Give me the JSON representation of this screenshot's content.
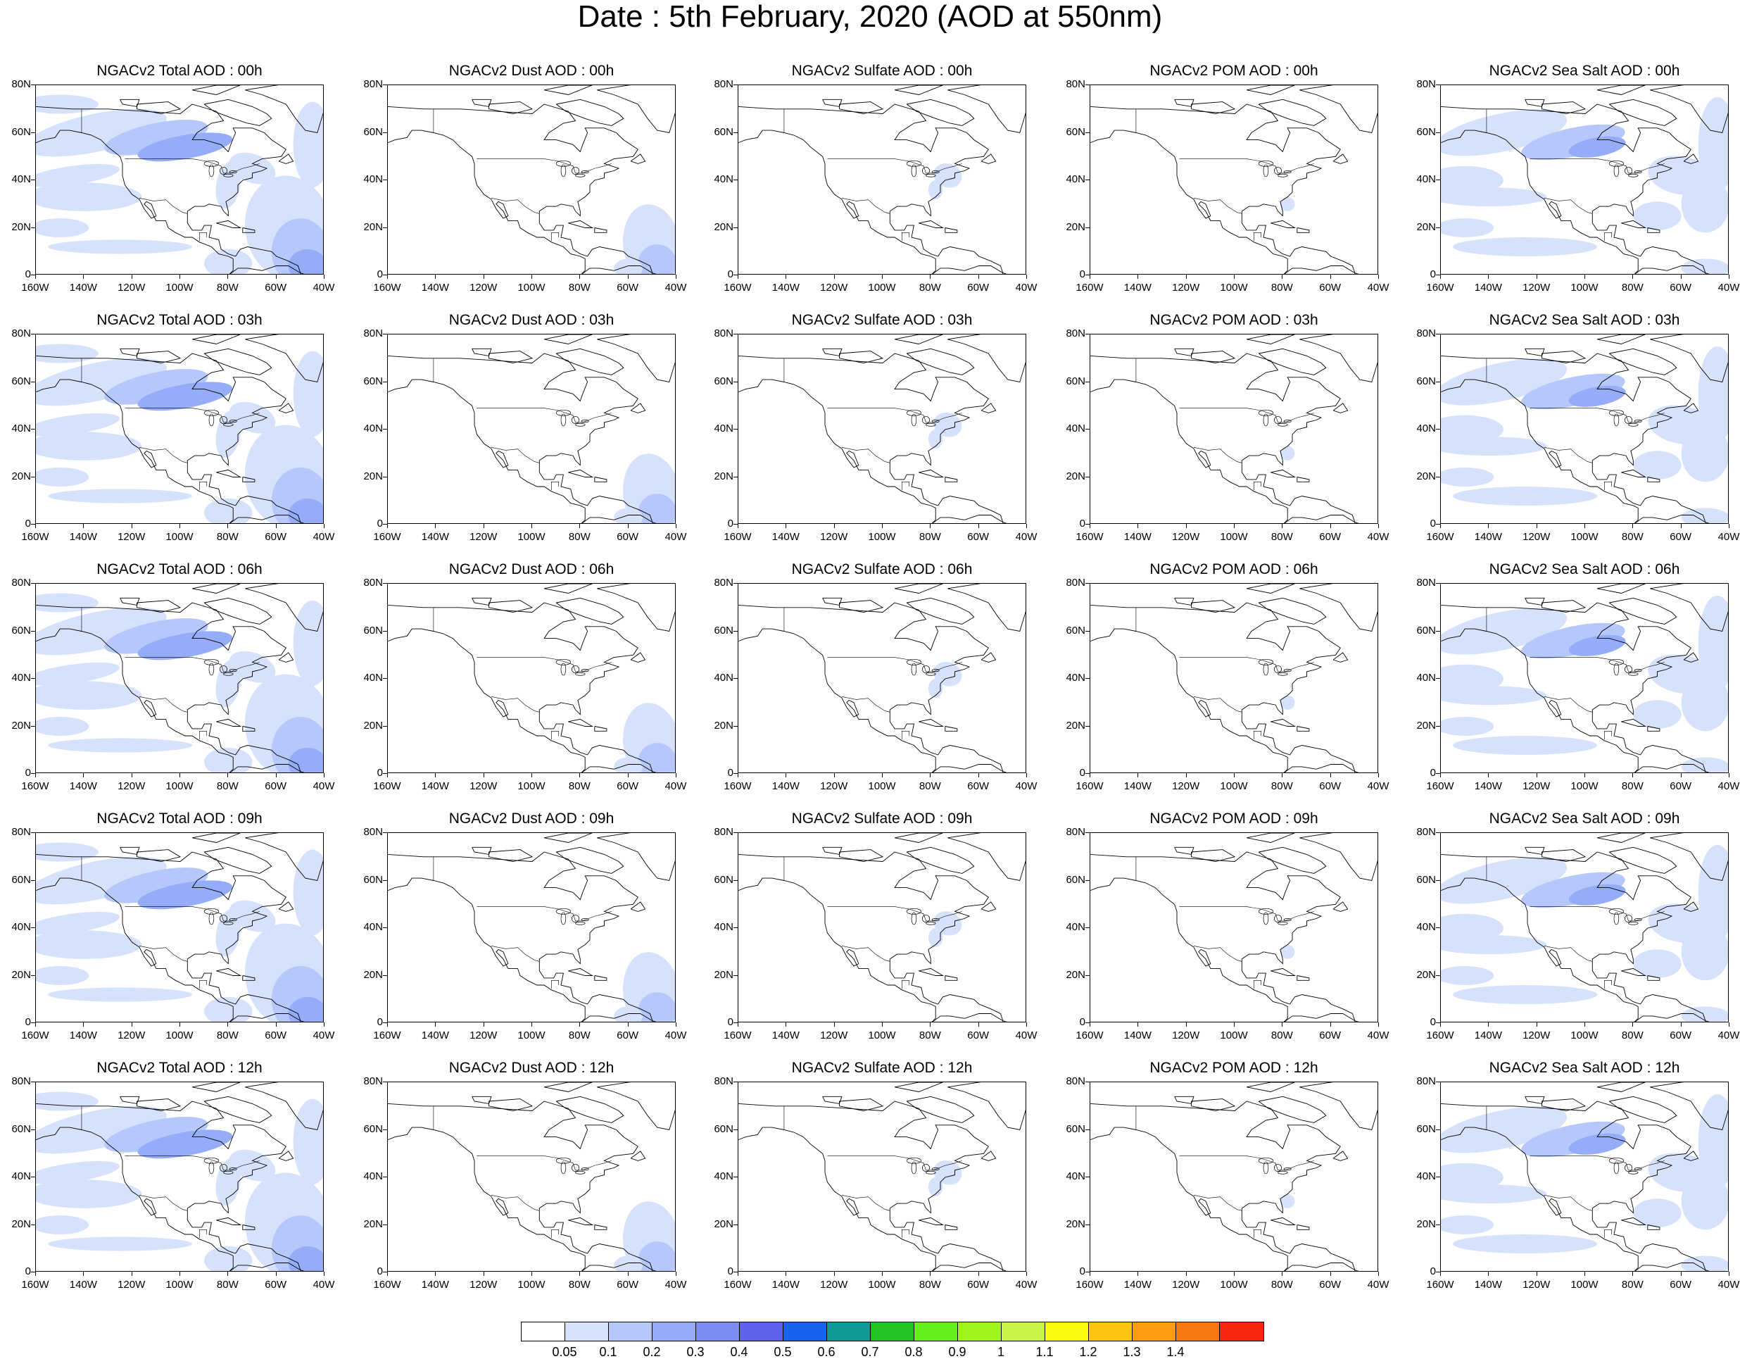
{
  "figure": {
    "title": "Date : 5th February, 2020 (AOD at 550nm)"
  },
  "axes": {
    "lat_labels": [
      "80N",
      "60N",
      "40N",
      "20N",
      "0"
    ],
    "lon_labels": [
      "160W",
      "140W",
      "120W",
      "100W",
      "80W",
      "60W",
      "40W"
    ],
    "lat_range": [
      0,
      80
    ],
    "lon_range": [
      -160,
      -40
    ]
  },
  "panels": [
    {
      "title": "NGACv2 Total AOD : 00h",
      "species": "total"
    },
    {
      "title": "NGACv2 Dust AOD : 00h",
      "species": "dust"
    },
    {
      "title": "NGACv2 Sulfate AOD : 00h",
      "species": "sulfate"
    },
    {
      "title": "NGACv2 POM AOD : 00h",
      "species": "pom"
    },
    {
      "title": "NGACv2 Sea Salt AOD : 00h",
      "species": "seasalt"
    },
    {
      "title": "NGACv2 Total AOD : 03h",
      "species": "total"
    },
    {
      "title": "NGACv2 Dust AOD : 03h",
      "species": "dust"
    },
    {
      "title": "NGACv2 Sulfate AOD : 03h",
      "species": "sulfate"
    },
    {
      "title": "NGACv2 POM AOD : 03h",
      "species": "pom"
    },
    {
      "title": "NGACv2 Sea Salt AOD : 03h",
      "species": "seasalt"
    },
    {
      "title": "NGACv2 Total AOD : 06h",
      "species": "total"
    },
    {
      "title": "NGACv2 Dust AOD : 06h",
      "species": "dust"
    },
    {
      "title": "NGACv2 Sulfate AOD : 06h",
      "species": "sulfate"
    },
    {
      "title": "NGACv2 POM AOD : 06h",
      "species": "pom"
    },
    {
      "title": "NGACv2 Sea Salt AOD : 06h",
      "species": "seasalt"
    },
    {
      "title": "NGACv2 Total AOD : 09h",
      "species": "total"
    },
    {
      "title": "NGACv2 Dust AOD : 09h",
      "species": "dust"
    },
    {
      "title": "NGACv2 Sulfate AOD : 09h",
      "species": "sulfate"
    },
    {
      "title": "NGACv2 POM AOD : 09h",
      "species": "pom"
    },
    {
      "title": "NGACv2 Sea Salt  AOD : 09h",
      "species": "seasalt"
    },
    {
      "title": "NGACv2 Total AOD  : 12h",
      "species": "total"
    },
    {
      "title": "NGACv2 Dust AOD : 12h",
      "species": "dust"
    },
    {
      "title": "NGACv2 Sulfate AOD : 12h",
      "species": "sulfate"
    },
    {
      "title": "NGACv2 POM  AOD : 12h",
      "species": "pom"
    },
    {
      "title": "NGACv2 Sea Salt  AOD : 12h",
      "species": "seasalt"
    }
  ],
  "colorbar": {
    "labels": [
      "0.05",
      "0.1",
      "0.2",
      "0.3",
      "0.4",
      "0.5",
      "0.6",
      "0.7",
      "0.8",
      "0.9",
      "1",
      "1.1",
      "1.2",
      "1.3",
      "1.4"
    ],
    "colors": [
      "#ffffff",
      "#d6e2fc",
      "#b6c8fb",
      "#95acf8",
      "#7a8ef5",
      "#5f62ee",
      "#1a63f0",
      "#0f9b95",
      "#21c421",
      "#63f01a",
      "#9ef31a",
      "#c6f547",
      "#fbfb10",
      "#fbc20f",
      "#fb9d0f",
      "#f87a0f",
      "#f8260f"
    ]
  },
  "palette": {
    "aod_low": "#d6e2fc",
    "aod_mid": "#b6c8fb",
    "aod_high": "#95acf8",
    "coast": "#000000"
  }
}
